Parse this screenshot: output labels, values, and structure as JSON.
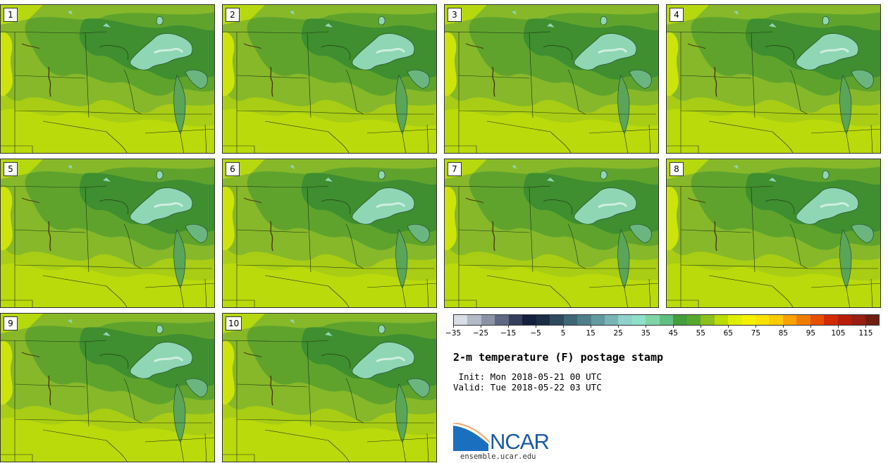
{
  "figure": {
    "title": "2-m temperature (F) postage stamp",
    "init": " Init: Mon 2018-05-21 00 UTC",
    "valid": "Valid: Tue 2018-05-22 03 UTC"
  },
  "panels": [
    {
      "label": "1"
    },
    {
      "label": "2"
    },
    {
      "label": "3"
    },
    {
      "label": "4"
    },
    {
      "label": "5"
    },
    {
      "label": "6"
    },
    {
      "label": "7"
    },
    {
      "label": "8"
    },
    {
      "label": "9"
    },
    {
      "label": "10"
    }
  ],
  "colorbar": {
    "ticks": [
      "−35",
      "−25",
      "−15",
      "−5",
      "5",
      "15",
      "25",
      "35",
      "45",
      "55",
      "65",
      "75",
      "85",
      "95",
      "105",
      "115"
    ],
    "tick_values": [
      -35,
      -25,
      -15,
      -5,
      5,
      15,
      25,
      35,
      45,
      55,
      65,
      75,
      85,
      95,
      105,
      115
    ],
    "range": [
      -35,
      120
    ],
    "step": 5,
    "colors": [
      "#d9dde6",
      "#b3b9c6",
      "#8c93a6",
      "#5f6882",
      "#353f5c",
      "#14203d",
      "#1c2e45",
      "#2d4a5e",
      "#3f6676",
      "#4e7f8a",
      "#629aa1",
      "#79b5b7",
      "#8fd1cc",
      "#8fe0c8",
      "#80d4a8",
      "#5fbf80",
      "#449e3a",
      "#5aa82b",
      "#8cbf1a",
      "#b9dc05",
      "#dfee05",
      "#f4f200",
      "#fbe300",
      "#fbcb00",
      "#f7a200",
      "#f27a00",
      "#e65000",
      "#d32b00",
      "#b81c0a",
      "#952012",
      "#6e1e10"
    ]
  },
  "logo": {
    "name": "NCAR",
    "url": "ensemble.ucar.edu"
  }
}
